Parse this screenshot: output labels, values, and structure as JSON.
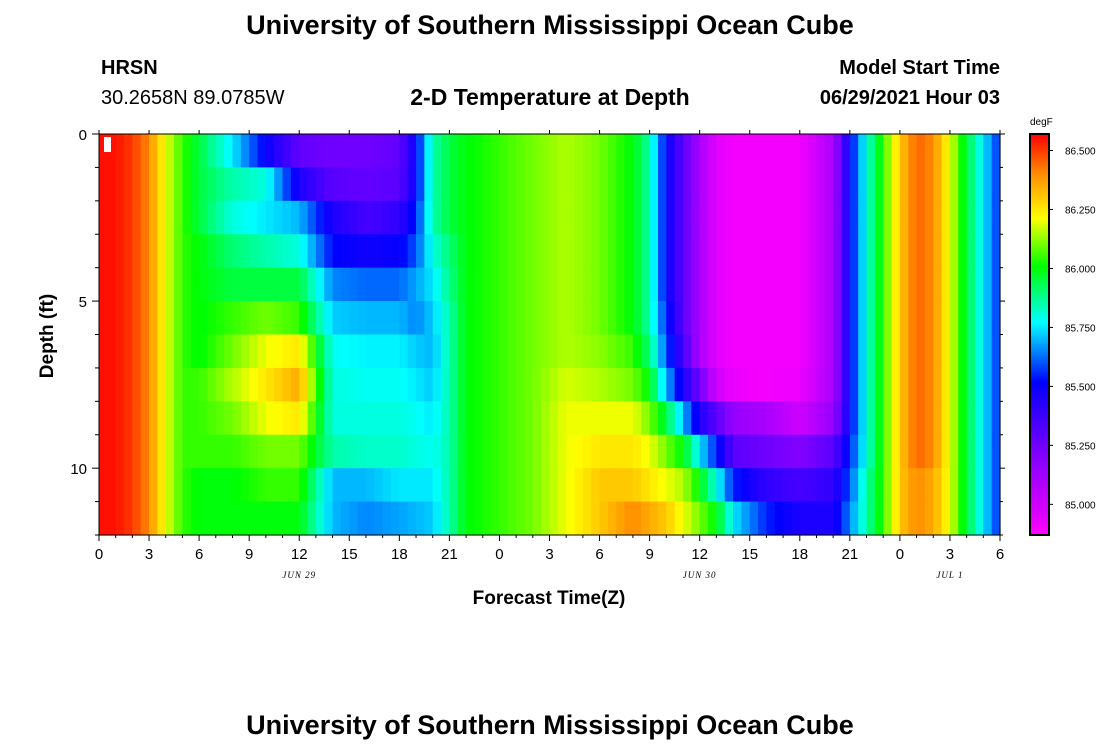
{
  "header": {
    "title": "University of Southern Mississippi Ocean Cube",
    "station": "HRSN",
    "coords": "30.2658N  89.0785W",
    "subtitle": "2-D Temperature at Depth",
    "model_label": "Model Start Time",
    "model_time": "06/29/2021 Hour 03"
  },
  "footer": {
    "title": "University of Southern Mississippi Ocean Cube"
  },
  "chart_data": {
    "type": "heatmap",
    "title": "2-D Temperature at Depth",
    "xlabel": "Forecast Time(Z)",
    "ylabel": "Depth (ft)",
    "x_tick_labels": [
      "0",
      "3",
      "6",
      "9",
      "12",
      "15",
      "18",
      "21",
      "0",
      "3",
      "6",
      "9",
      "12",
      "15",
      "18",
      "21",
      "0",
      "3",
      "6"
    ],
    "x_range_hours": [
      0,
      54
    ],
    "date_labels": [
      {
        "text": "JUN 29",
        "hour": 12
      },
      {
        "text": "JUN 30",
        "hour": 36
      },
      {
        "text": "JUL 1",
        "hour": 51
      }
    ],
    "y_tick_labels": [
      "0",
      "5",
      "10"
    ],
    "y_range_ft": [
      0,
      12
    ],
    "colorbar": {
      "unit": "degF",
      "labels": [
        "86.500",
        "86.250",
        "86.000",
        "85.750",
        "85.500",
        "85.250",
        "85.000"
      ],
      "range": [
        84.87,
        86.57
      ]
    },
    "depth_levels_ft": [
      0.5,
      1.5,
      2.5,
      3.5,
      4.5,
      5.5,
      6.5,
      7.5,
      8.5,
      9.5,
      10.5,
      11.5
    ],
    "column_hours": [
      0,
      1,
      2,
      3,
      4,
      5,
      6,
      8,
      10,
      12,
      14,
      16,
      18,
      19,
      20,
      21,
      22,
      24,
      26,
      28,
      30,
      32,
      33,
      34,
      35,
      36,
      37,
      38,
      40,
      42,
      44,
      45,
      46,
      47,
      48,
      49,
      50,
      51,
      52,
      53,
      54
    ],
    "temps": [
      [
        86.55,
        86.55,
        86.5,
        86.4,
        86.2,
        86.05,
        85.95,
        85.75,
        85.5,
        85.28,
        85.25,
        85.25,
        85.28,
        85.5,
        85.85,
        85.95,
        86.0,
        86.05,
        86.1,
        86.15,
        86.1,
        86.0,
        85.85,
        85.5,
        85.3,
        85.1,
        84.95,
        84.9,
        84.9,
        84.9,
        85.1,
        85.5,
        85.8,
        86.05,
        86.3,
        86.45,
        86.4,
        86.2,
        85.95,
        85.75,
        85.55
      ],
      [
        86.55,
        86.55,
        86.5,
        86.4,
        86.2,
        86.05,
        85.95,
        85.85,
        85.8,
        85.45,
        85.3,
        85.28,
        85.3,
        85.5,
        85.85,
        85.95,
        86.0,
        86.05,
        86.1,
        86.15,
        86.1,
        86.0,
        85.85,
        85.5,
        85.3,
        85.1,
        84.95,
        84.9,
        84.9,
        84.9,
        85.1,
        85.5,
        85.8,
        86.05,
        86.3,
        86.45,
        86.4,
        86.2,
        85.95,
        85.75,
        85.55
      ],
      [
        86.55,
        86.55,
        86.5,
        86.4,
        86.2,
        86.05,
        85.95,
        85.8,
        85.75,
        85.7,
        85.45,
        85.35,
        85.4,
        85.55,
        85.85,
        85.95,
        86.0,
        86.05,
        86.1,
        86.15,
        86.1,
        86.0,
        85.85,
        85.5,
        85.3,
        85.1,
        84.95,
        84.9,
        84.9,
        84.9,
        85.1,
        85.5,
        85.8,
        86.05,
        86.3,
        86.45,
        86.4,
        86.2,
        85.95,
        85.75,
        85.55
      ],
      [
        86.55,
        86.55,
        86.5,
        86.4,
        86.2,
        86.05,
        86.0,
        85.9,
        85.85,
        85.8,
        85.52,
        85.48,
        85.5,
        85.6,
        85.8,
        85.9,
        86.0,
        86.05,
        86.1,
        86.15,
        86.1,
        86.0,
        85.85,
        85.5,
        85.3,
        85.1,
        84.95,
        84.9,
        84.9,
        84.9,
        85.1,
        85.5,
        85.8,
        86.05,
        86.3,
        86.45,
        86.4,
        86.2,
        85.95,
        85.75,
        85.55
      ],
      [
        86.55,
        86.55,
        86.5,
        86.4,
        86.2,
        86.05,
        86.0,
        85.95,
        85.95,
        85.95,
        85.65,
        85.62,
        85.62,
        85.68,
        85.75,
        85.88,
        86.0,
        86.05,
        86.1,
        86.15,
        86.1,
        86.0,
        85.85,
        85.5,
        85.3,
        85.1,
        84.95,
        84.9,
        84.9,
        84.9,
        85.1,
        85.5,
        85.8,
        86.05,
        86.3,
        86.45,
        86.4,
        86.2,
        85.95,
        85.75,
        85.55
      ],
      [
        86.55,
        86.55,
        86.5,
        86.4,
        86.2,
        86.05,
        86.0,
        86.05,
        86.1,
        86.05,
        85.72,
        85.7,
        85.7,
        85.65,
        85.72,
        85.85,
        86.0,
        86.05,
        86.1,
        86.15,
        86.1,
        86.0,
        85.85,
        85.55,
        85.3,
        85.1,
        84.95,
        84.9,
        84.9,
        84.9,
        85.1,
        85.5,
        85.8,
        86.05,
        86.3,
        86.45,
        86.4,
        86.2,
        85.95,
        85.75,
        85.55
      ],
      [
        86.55,
        86.55,
        86.5,
        86.4,
        86.2,
        86.05,
        86.0,
        86.1,
        86.2,
        86.25,
        85.78,
        85.76,
        85.76,
        85.72,
        85.7,
        85.85,
        86.0,
        86.05,
        86.1,
        86.15,
        86.12,
        86.05,
        85.9,
        85.6,
        85.35,
        85.1,
        84.95,
        84.9,
        84.9,
        84.9,
        85.1,
        85.5,
        85.8,
        86.05,
        86.3,
        86.45,
        86.4,
        86.2,
        85.95,
        85.75,
        85.55
      ],
      [
        86.55,
        86.55,
        86.5,
        86.4,
        86.2,
        86.05,
        86.05,
        86.15,
        86.25,
        86.35,
        85.8,
        85.78,
        85.78,
        85.75,
        85.72,
        85.85,
        86.0,
        86.05,
        86.1,
        86.18,
        86.15,
        86.1,
        86.0,
        85.7,
        85.45,
        85.25,
        85.0,
        84.92,
        84.9,
        84.92,
        85.1,
        85.5,
        85.8,
        86.05,
        86.3,
        86.45,
        86.4,
        86.2,
        85.95,
        85.75,
        85.55
      ],
      [
        86.55,
        86.55,
        86.5,
        86.4,
        86.2,
        86.05,
        86.05,
        86.1,
        86.2,
        86.25,
        85.8,
        85.8,
        85.8,
        85.78,
        85.75,
        85.85,
        86.0,
        86.05,
        86.1,
        86.2,
        86.2,
        86.2,
        86.1,
        85.95,
        85.7,
        85.45,
        85.3,
        85.15,
        85.1,
        85.0,
        85.15,
        85.5,
        85.8,
        86.05,
        86.3,
        86.45,
        86.4,
        86.2,
        85.95,
        85.75,
        85.55
      ],
      [
        86.55,
        86.55,
        86.5,
        86.4,
        86.2,
        86.05,
        86.05,
        86.05,
        86.1,
        86.1,
        85.85,
        85.82,
        85.82,
        85.8,
        85.78,
        85.85,
        86.0,
        86.05,
        86.1,
        86.2,
        86.25,
        86.25,
        86.2,
        86.1,
        86.0,
        85.75,
        85.55,
        85.3,
        85.25,
        85.2,
        85.3,
        85.55,
        85.8,
        86.05,
        86.3,
        86.45,
        86.4,
        86.2,
        85.95,
        85.75,
        85.55
      ],
      [
        86.55,
        86.55,
        86.5,
        86.4,
        86.2,
        86.05,
        86.0,
        86.0,
        86.05,
        86.05,
        85.7,
        85.7,
        85.75,
        85.75,
        85.75,
        85.85,
        86.0,
        86.05,
        86.1,
        86.2,
        86.3,
        86.3,
        86.25,
        86.2,
        86.15,
        86.0,
        85.8,
        85.55,
        85.4,
        85.35,
        85.4,
        85.6,
        85.85,
        86.05,
        86.3,
        86.4,
        86.35,
        86.2,
        85.95,
        85.75,
        85.55
      ],
      [
        86.55,
        86.55,
        86.5,
        86.4,
        86.2,
        86.05,
        86.0,
        86.0,
        86.0,
        86.0,
        85.7,
        85.65,
        85.68,
        85.7,
        85.72,
        85.85,
        86.0,
        86.05,
        86.1,
        86.2,
        86.3,
        86.4,
        86.35,
        86.3,
        86.2,
        86.1,
        86.0,
        85.75,
        85.55,
        85.45,
        85.45,
        85.65,
        85.85,
        86.05,
        86.3,
        86.4,
        86.35,
        86.2,
        85.95,
        85.75,
        85.55
      ]
    ]
  }
}
